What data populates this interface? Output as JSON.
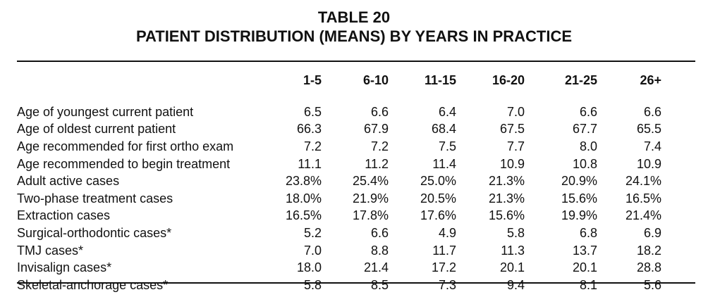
{
  "table_number": "TABLE 20",
  "table_title": "PATIENT DISTRIBUTION (MEANS) BY YEARS IN PRACTICE",
  "columns": [
    "1-5",
    "6-10",
    "11-15",
    "16-20",
    "21-25",
    "26+"
  ],
  "rows": [
    {
      "label": "Age of youngest current patient",
      "values": [
        "6.5",
        "6.6",
        "6.4",
        "7.0",
        "6.6",
        "6.6"
      ]
    },
    {
      "label": "Age of oldest current patient",
      "values": [
        "66.3",
        "67.9",
        "68.4",
        "67.5",
        "67.7",
        "65.5"
      ]
    },
    {
      "label": "Age recommended for first ortho exam",
      "values": [
        "7.2",
        "7.2",
        "7.5",
        "7.7",
        "8.0",
        "7.4"
      ]
    },
    {
      "label": "Age recommended to begin treatment",
      "values": [
        "11.1",
        "11.2",
        "11.4",
        "10.9",
        "10.8",
        "10.9"
      ]
    },
    {
      "label": "Adult active cases",
      "values": [
        "23.8%",
        "25.4%",
        "25.0%",
        "21.3%",
        "20.9%",
        "24.1%"
      ]
    },
    {
      "label": "Two-phase treatment cases",
      "values": [
        "18.0%",
        "21.9%",
        "20.5%",
        "21.3%",
        "15.6%",
        "16.5%"
      ]
    },
    {
      "label": "Extraction cases",
      "values": [
        "16.5%",
        "17.8%",
        "17.6%",
        "15.6%",
        "19.9%",
        "21.4%"
      ]
    },
    {
      "label": "Surgical-orthodontic cases*",
      "values": [
        "5.2",
        "6.6",
        "4.9",
        "5.8",
        "6.8",
        "6.9"
      ]
    },
    {
      "label": "TMJ cases*",
      "values": [
        "7.0",
        "8.8",
        "11.7",
        "11.3",
        "13.7",
        "18.2"
      ]
    },
    {
      "label": "Invisalign cases*",
      "values": [
        "18.0",
        "21.4",
        "17.2",
        "20.1",
        "20.1",
        "28.8"
      ]
    },
    {
      "label": "Skeletal-anchorage cases*",
      "values": [
        "5.8",
        "8.5",
        "7.3",
        "9.4",
        "8.1",
        "5.6"
      ]
    }
  ]
}
